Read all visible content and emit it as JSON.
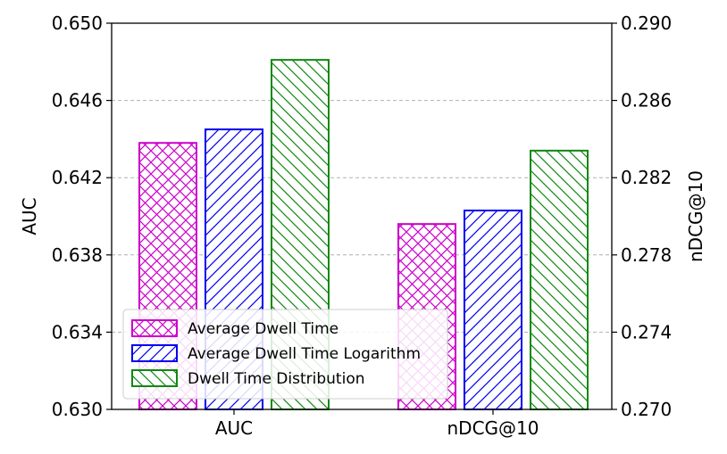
{
  "chart_data": {
    "type": "bar",
    "categories": [
      "AUC",
      "nDCG@10"
    ],
    "series": [
      {
        "name": "Average Dwell Time",
        "values": [
          0.6438,
          0.2796
        ],
        "color": "#cc00cc",
        "hatch": "cross"
      },
      {
        "name": "Average Dwell Time Logarithm",
        "values": [
          0.6445,
          0.2803
        ],
        "color": "#0000ee",
        "hatch": "forward"
      },
      {
        "name": "Dwell Time Distribution",
        "values": [
          0.6481,
          0.2834
        ],
        "color": "#118811",
        "hatch": "back"
      }
    ],
    "axes": {
      "left": {
        "label": "AUC",
        "range": [
          0.63,
          0.65
        ],
        "ticks": [
          "0.630",
          "0.634",
          "0.638",
          "0.642",
          "0.646",
          "0.650"
        ],
        "applies_to": "AUC"
      },
      "right": {
        "label": "nDCG@10",
        "range": [
          0.27,
          0.29
        ],
        "ticks": [
          "0.270",
          "0.274",
          "0.278",
          "0.282",
          "0.286",
          "0.290"
        ],
        "applies_to": "nDCG@10"
      }
    },
    "grid": "horizontal dashed",
    "legend": "lower-left"
  }
}
